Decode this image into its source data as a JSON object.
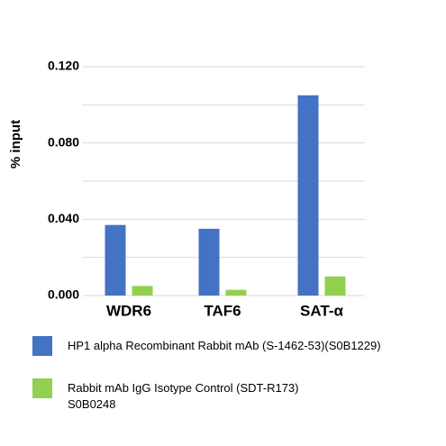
{
  "chart_data": {
    "type": "bar",
    "y_label": "% input",
    "categories": [
      "WDR6",
      "TAF6",
      "SAT-α"
    ],
    "series": [
      {
        "name": "HP1 alpha Recombinant Rabbit mAb (S-1462-53)(S0B1229)",
        "color": "#4472c4",
        "values": [
          0.037,
          0.035,
          0.105
        ]
      },
      {
        "name": "Rabbit mAb IgG Isotype Control (SDT-R173)\nS0B0248",
        "color": "#92d050",
        "values": [
          0.005,
          0.003,
          0.01
        ]
      }
    ],
    "ylim": [
      0,
      0.12
    ],
    "yticks": [
      {
        "value": 0,
        "label": "0.000"
      },
      {
        "value": 0.04,
        "label": "0.040"
      },
      {
        "value": 0.08,
        "label": "0.080"
      },
      {
        "value": 0.12,
        "label": "0.120"
      }
    ],
    "minor_grid": [
      0.02,
      0.06,
      0.1
    ],
    "grid": true
  }
}
